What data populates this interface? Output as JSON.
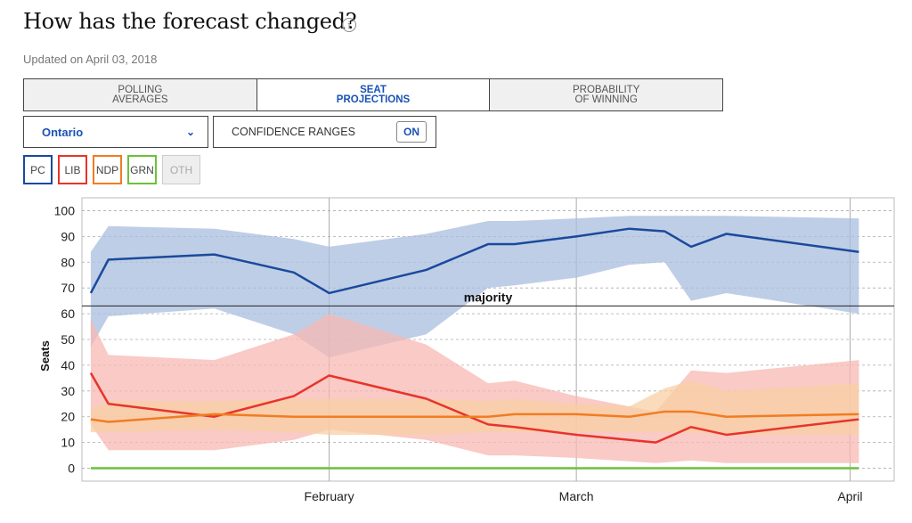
{
  "header": {
    "title": "How has the forecast changed?",
    "info_icon": "info-icon",
    "updated": "Updated on April 03, 2018"
  },
  "tabs": [
    {
      "label": "POLLING\nAVERAGES",
      "active": false
    },
    {
      "label": "SEAT\nPROJECTIONS",
      "active": true
    },
    {
      "label": "PROBABILITY\nOF WINNING",
      "active": false
    }
  ],
  "controls": {
    "region_selected": "Ontario",
    "confidence_label": "CONFIDENCE RANGES",
    "confidence_toggle": "ON"
  },
  "parties": [
    {
      "label": "PC",
      "color": "#1a4a9c",
      "active": true
    },
    {
      "label": "LIB",
      "color": "#e8342a",
      "active": true
    },
    {
      "label": "NDP",
      "color": "#f07d22",
      "active": true
    },
    {
      "label": "GRN",
      "color": "#6cc13a",
      "active": true
    },
    {
      "label": "OTH",
      "color": "#cccccc",
      "active": false
    }
  ],
  "chart_data": {
    "type": "line",
    "ylabel": "Seats",
    "ylim": [
      -5,
      105
    ],
    "yticks": [
      0,
      10,
      20,
      30,
      40,
      50,
      60,
      70,
      80,
      90,
      100
    ],
    "x_domain": [
      "2018-01-04",
      "2018-04-06"
    ],
    "xticks": [
      {
        "label": "February",
        "date": "2018-02-01"
      },
      {
        "label": "March",
        "date": "2018-03-01"
      },
      {
        "label": "April",
        "date": "2018-04-01"
      }
    ],
    "majority": {
      "value": 63,
      "label": "majority"
    },
    "series": [
      {
        "name": "PC",
        "color": "#1a4a9c",
        "band_color": "#a9bedf",
        "points": [
          {
            "d": "2018-01-05",
            "v": 68,
            "lo": 47,
            "hi": 84
          },
          {
            "d": "2018-01-07",
            "v": 81,
            "lo": 59,
            "hi": 94
          },
          {
            "d": "2018-01-19",
            "v": 83,
            "lo": 62,
            "hi": 93
          },
          {
            "d": "2018-01-28",
            "v": 76,
            "lo": 52,
            "hi": 89
          },
          {
            "d": "2018-02-01",
            "v": 68,
            "lo": 43,
            "hi": 86
          },
          {
            "d": "2018-02-12",
            "v": 77,
            "lo": 52,
            "hi": 91
          },
          {
            "d": "2018-02-19",
            "v": 87,
            "lo": 70,
            "hi": 96
          },
          {
            "d": "2018-02-22",
            "v": 87,
            "lo": 71,
            "hi": 96
          },
          {
            "d": "2018-03-01",
            "v": 90,
            "lo": 74,
            "hi": 97
          },
          {
            "d": "2018-03-07",
            "v": 93,
            "lo": 79,
            "hi": 98
          },
          {
            "d": "2018-03-11",
            "v": 92,
            "lo": 80,
            "hi": 98
          },
          {
            "d": "2018-03-14",
            "v": 86,
            "lo": 65,
            "hi": 98
          },
          {
            "d": "2018-03-18",
            "v": 91,
            "lo": 68,
            "hi": 98
          },
          {
            "d": "2018-04-02",
            "v": 84,
            "lo": 60,
            "hi": 97
          }
        ]
      },
      {
        "name": "LIB",
        "color": "#e8342a",
        "band_color": "#f7b8b3",
        "points": [
          {
            "d": "2018-01-05",
            "v": 37,
            "lo": 17,
            "hi": 58
          },
          {
            "d": "2018-01-07",
            "v": 25,
            "lo": 7,
            "hi": 44
          },
          {
            "d": "2018-01-19",
            "v": 20,
            "lo": 7,
            "hi": 42
          },
          {
            "d": "2018-01-28",
            "v": 28,
            "lo": 11,
            "hi": 52
          },
          {
            "d": "2018-02-01",
            "v": 36,
            "lo": 15,
            "hi": 60
          },
          {
            "d": "2018-02-12",
            "v": 27,
            "lo": 11,
            "hi": 48
          },
          {
            "d": "2018-02-19",
            "v": 17,
            "lo": 5,
            "hi": 33
          },
          {
            "d": "2018-02-22",
            "v": 16,
            "lo": 5,
            "hi": 34
          },
          {
            "d": "2018-03-01",
            "v": 13,
            "lo": 4,
            "hi": 28
          },
          {
            "d": "2018-03-10",
            "v": 10,
            "lo": 2,
            "hi": 22
          },
          {
            "d": "2018-03-14",
            "v": 16,
            "lo": 3,
            "hi": 38
          },
          {
            "d": "2018-03-18",
            "v": 13,
            "lo": 2,
            "hi": 37
          },
          {
            "d": "2018-04-02",
            "v": 19,
            "lo": 2,
            "hi": 42
          }
        ]
      },
      {
        "name": "NDP",
        "color": "#f07d22",
        "band_color": "#f8cfa4",
        "points": [
          {
            "d": "2018-01-05",
            "v": 19,
            "lo": 14,
            "hi": 23
          },
          {
            "d": "2018-01-07",
            "v": 18,
            "lo": 14,
            "hi": 26
          },
          {
            "d": "2018-01-19",
            "v": 21,
            "lo": 15,
            "hi": 26
          },
          {
            "d": "2018-01-28",
            "v": 20,
            "lo": 14,
            "hi": 27
          },
          {
            "d": "2018-02-01",
            "v": 20,
            "lo": 13,
            "hi": 27
          },
          {
            "d": "2018-02-12",
            "v": 20,
            "lo": 13,
            "hi": 27
          },
          {
            "d": "2018-02-19",
            "v": 20,
            "lo": 14,
            "hi": 26
          },
          {
            "d": "2018-02-22",
            "v": 21,
            "lo": 14,
            "hi": 27
          },
          {
            "d": "2018-03-01",
            "v": 21,
            "lo": 14,
            "hi": 25
          },
          {
            "d": "2018-03-07",
            "v": 20,
            "lo": 14,
            "hi": 24
          },
          {
            "d": "2018-03-11",
            "v": 22,
            "lo": 14,
            "hi": 31
          },
          {
            "d": "2018-03-14",
            "v": 22,
            "lo": 14,
            "hi": 34
          },
          {
            "d": "2018-03-18",
            "v": 20,
            "lo": 13,
            "hi": 30
          },
          {
            "d": "2018-04-02",
            "v": 21,
            "lo": 13,
            "hi": 33
          }
        ]
      },
      {
        "name": "GRN",
        "color": "#6cc13a",
        "band_color": "#cfe9bd",
        "points": [
          {
            "d": "2018-01-05",
            "v": 0,
            "lo": 0,
            "hi": 0.4
          },
          {
            "d": "2018-04-02",
            "v": 0,
            "lo": 0,
            "hi": 0.4
          }
        ]
      }
    ]
  }
}
